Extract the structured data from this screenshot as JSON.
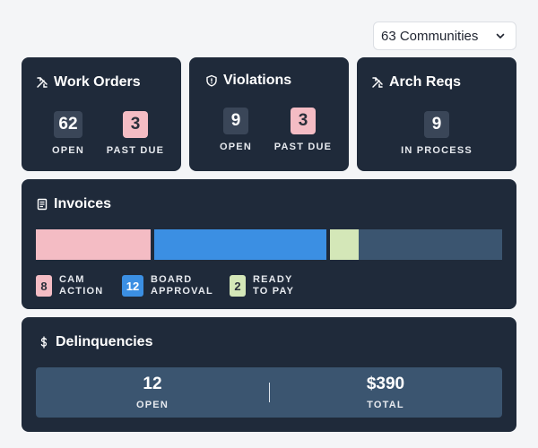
{
  "communities_dropdown": {
    "label": "63 Communities",
    "icon": "chevron-down-icon"
  },
  "work_orders": {
    "title": "Work Orders",
    "icon": "tools-icon",
    "open": {
      "value": "62",
      "label": "OPEN"
    },
    "past_due": {
      "value": "3",
      "label": "PAST DUE"
    }
  },
  "violations": {
    "title": "Violations",
    "icon": "shield-icon",
    "open": {
      "value": "9",
      "label": "OPEN"
    },
    "past_due": {
      "value": "3",
      "label": "PAST DUE"
    }
  },
  "arch_reqs": {
    "title": "Arch Reqs",
    "icon": "tools-icon",
    "in_process": {
      "value": "9",
      "label": "IN PROCESS"
    }
  },
  "invoices": {
    "title": "Invoices",
    "icon": "receipt-icon",
    "legend": [
      {
        "value": "8",
        "label_line1": "CAM",
        "label_line2": "ACTION",
        "color": "#f4bcc4"
      },
      {
        "value": "12",
        "label_line1": "BOARD",
        "label_line2": "APPROVAL",
        "color": "#3b8fe3"
      },
      {
        "value": "2",
        "label_line1": "READY",
        "label_line2": "TO PAY",
        "color": "#d4e7b8"
      }
    ],
    "bar_colors": {
      "cam": "#f4bcc4",
      "board": "#3b8fe3",
      "ready": "#d4e7b8",
      "remainder": "#3b5570"
    }
  },
  "delinquencies": {
    "title": "Delinquencies",
    "icon": "dollar-icon",
    "open": {
      "value": "12",
      "label": "OPEN"
    },
    "total": {
      "value": "$390",
      "label": "TOTAL"
    }
  }
}
